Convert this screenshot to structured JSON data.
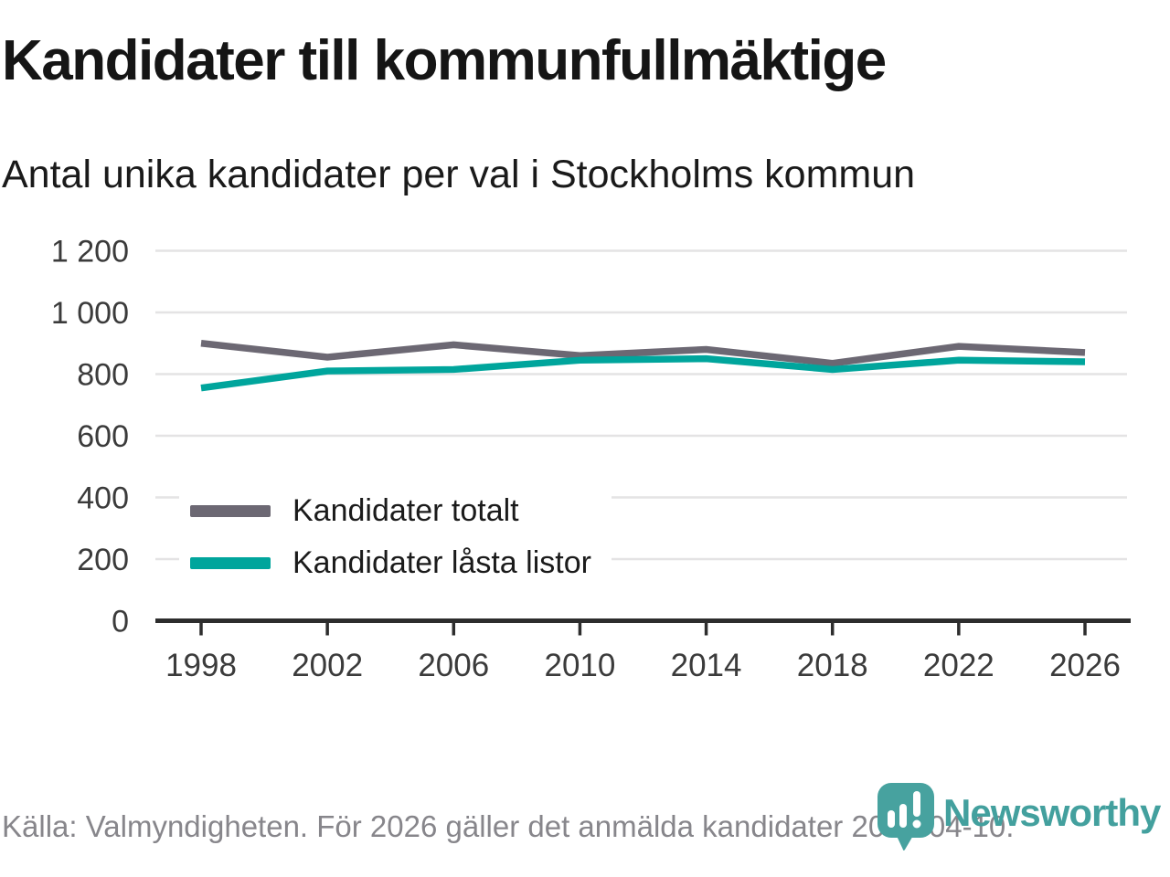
{
  "header": {
    "title": "Kandidater till kommunfullmäktige",
    "subtitle": "Antal unika kandidater per val i Stockholms kommun"
  },
  "chart_data": {
    "type": "line",
    "title": "Kandidater till kommunfullmäktige",
    "subtitle": "Antal unika kandidater per val i Stockholms kommun",
    "x": [
      1998,
      2002,
      2006,
      2010,
      2014,
      2018,
      2022,
      2026
    ],
    "xtick_labels": [
      "1998",
      "2002",
      "2006",
      "2010",
      "2014",
      "2018",
      "2022",
      "2026"
    ],
    "series": [
      {
        "name": "Kandidater totalt",
        "color": "#6c6873",
        "values": [
          900,
          855,
          895,
          860,
          880,
          835,
          890,
          870
        ]
      },
      {
        "name": "Kandidater låsta listor",
        "color": "#00a59c",
        "values": [
          755,
          810,
          815,
          845,
          850,
          815,
          845,
          840
        ]
      }
    ],
    "ylim": [
      0,
      1200
    ],
    "yticks": [
      {
        "value": 0,
        "label": "0"
      },
      {
        "value": 200,
        "label": "200"
      },
      {
        "value": 400,
        "label": "400"
      },
      {
        "value": 600,
        "label": "600"
      },
      {
        "value": 800,
        "label": "800"
      },
      {
        "value": 1000,
        "label": "1 000"
      },
      {
        "value": 1200,
        "label": "1 200"
      }
    ],
    "grid": "horizontal",
    "legend_position": "inside-left",
    "colors": {
      "gridline": "#e4e3e4",
      "axis": "#2d2d2d",
      "tick_text": "#3b3b3b"
    }
  },
  "footer": {
    "source_text": "Källa: Valmyndigheten. För 2026 gäller det anmälda kandidater 2026-04-10."
  },
  "logo": {
    "wordmark": "Newsworthy",
    "icon": "newsworthy-pin-barchart-icon",
    "color": "#43a09e"
  }
}
